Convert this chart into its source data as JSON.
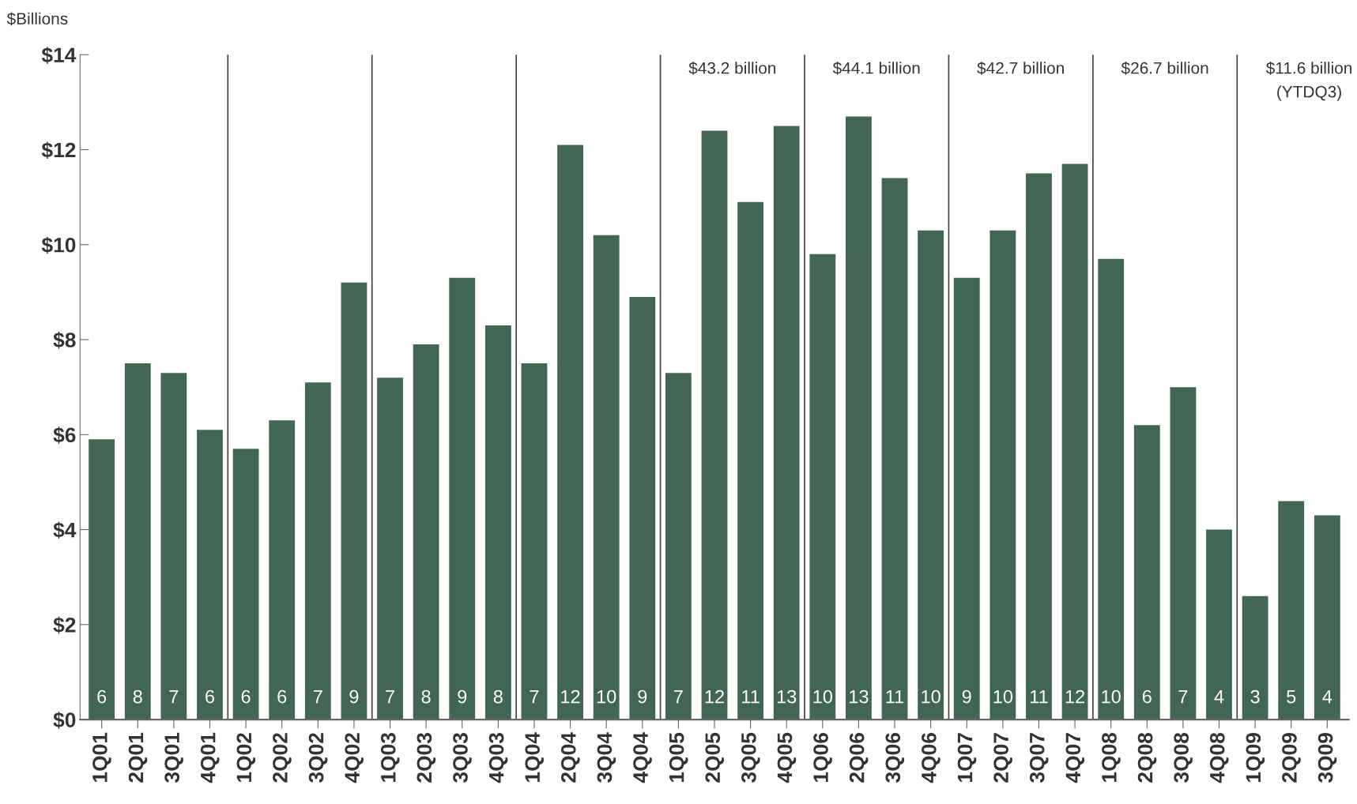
{
  "chart_data": {
    "type": "bar",
    "ylabel": "$Billions",
    "categories": [
      "1Q01",
      "2Q01",
      "3Q01",
      "4Q01",
      "1Q02",
      "2Q02",
      "3Q02",
      "4Q02",
      "1Q03",
      "2Q03",
      "3Q03",
      "4Q03",
      "1Q04",
      "2Q04",
      "3Q04",
      "4Q04",
      "1Q05",
      "2Q05",
      "3Q05",
      "4Q05",
      "1Q06",
      "2Q06",
      "3Q06",
      "4Q06",
      "1Q07",
      "2Q07",
      "3Q07",
      "4Q07",
      "1Q08",
      "2Q08",
      "3Q08",
      "4Q08",
      "1Q09",
      "2Q09",
      "3Q09"
    ],
    "values": [
      5.9,
      7.5,
      7.3,
      6.1,
      5.7,
      6.3,
      7.1,
      9.2,
      7.2,
      7.9,
      9.3,
      8.3,
      7.5,
      12.1,
      10.2,
      8.9,
      7.3,
      12.4,
      10.9,
      12.5,
      9.8,
      12.7,
      11.4,
      10.3,
      9.3,
      10.3,
      11.5,
      11.7,
      9.7,
      6.2,
      7.0,
      4.0,
      2.6,
      4.6,
      4.3
    ],
    "value_labels": [
      "6",
      "8",
      "7",
      "6",
      "6",
      "6",
      "7",
      "9",
      "7",
      "8",
      "9",
      "8",
      "7",
      "12",
      "10",
      "9",
      "7",
      "12",
      "11",
      "13",
      "10",
      "13",
      "11",
      "10",
      "9",
      "10",
      "11",
      "12",
      "10",
      "6",
      "7",
      "4",
      "3",
      "5",
      "4"
    ],
    "color": "#426654",
    "ylim": [
      0,
      14
    ],
    "yticks": [
      {
        "value": 0,
        "label": "$0"
      },
      {
        "value": 2,
        "label": "$2"
      },
      {
        "value": 4,
        "label": "$4"
      },
      {
        "value": 6,
        "label": "$6"
      },
      {
        "value": 8,
        "label": "$8"
      },
      {
        "value": 10,
        "label": "$10"
      },
      {
        "value": 12,
        "label": "$12"
      },
      {
        "value": 14,
        "label": "$14"
      }
    ],
    "annotations": [
      "$43.2 billion",
      "$44.1 billion",
      "$42.7 billion",
      "$26.7 billion",
      "$11.6 billion\n(YTDQ3)"
    ],
    "grid": false,
    "legend": false
  }
}
